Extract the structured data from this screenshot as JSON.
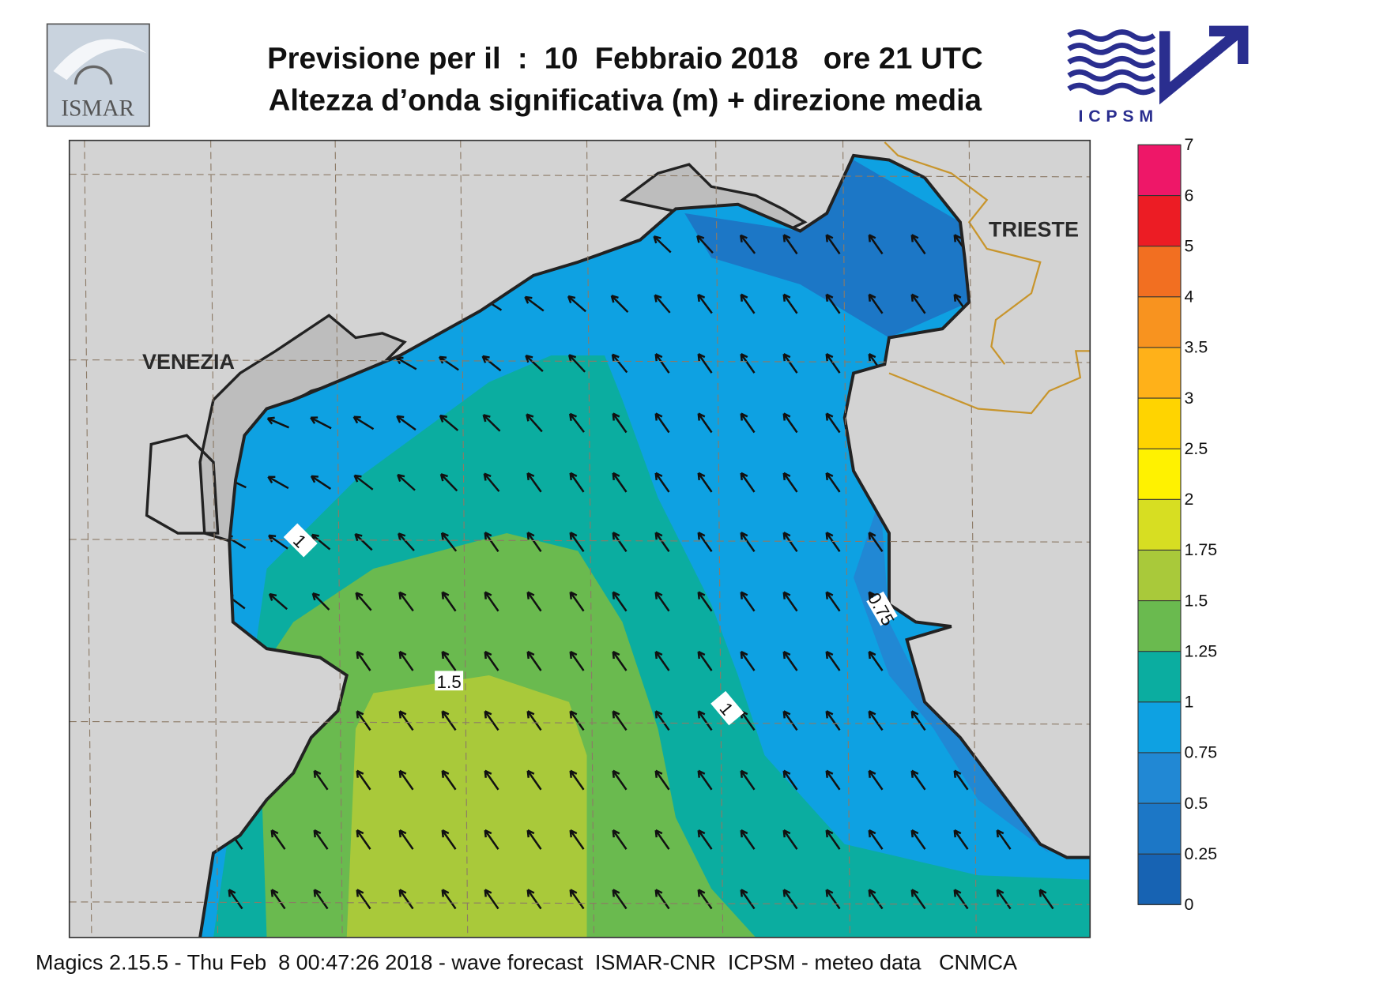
{
  "header": {
    "title": "Previsione per il  :  10  Febbraio 2018   ore 21 UTC",
    "subtitle": "Altezza d’onda significativa (m) + direzione media",
    "logo_left": "ISMAR",
    "logo_right": "ICPSM"
  },
  "map": {
    "labels": [
      "VENEZIA",
      "TRIESTE"
    ],
    "contour_labels": [
      "1",
      "1.5",
      "1",
      "0.75"
    ]
  },
  "legend": {
    "levels": [
      0,
      0.25,
      0.5,
      0.75,
      1,
      1.25,
      1.5,
      1.75,
      2,
      2.5,
      3,
      3.5,
      4,
      5,
      6,
      7
    ],
    "colors": [
      "#1763b3",
      "#1c77c6",
      "#2188d4",
      "#0ea1e2",
      "#0badA0",
      "#6aba4f",
      "#a9c93a",
      "#d7de22",
      "#fff200",
      "#ffd400",
      "#ffb119",
      "#f8931f",
      "#f26f21",
      "#ec1c24",
      "#ee1768"
    ]
  },
  "footer": "Magics 2.15.5 - Thu Feb  8 00:47:26 2018 - wave forecast  ISMAR-CNR  ICPSM - meteo data   CNMCA"
}
